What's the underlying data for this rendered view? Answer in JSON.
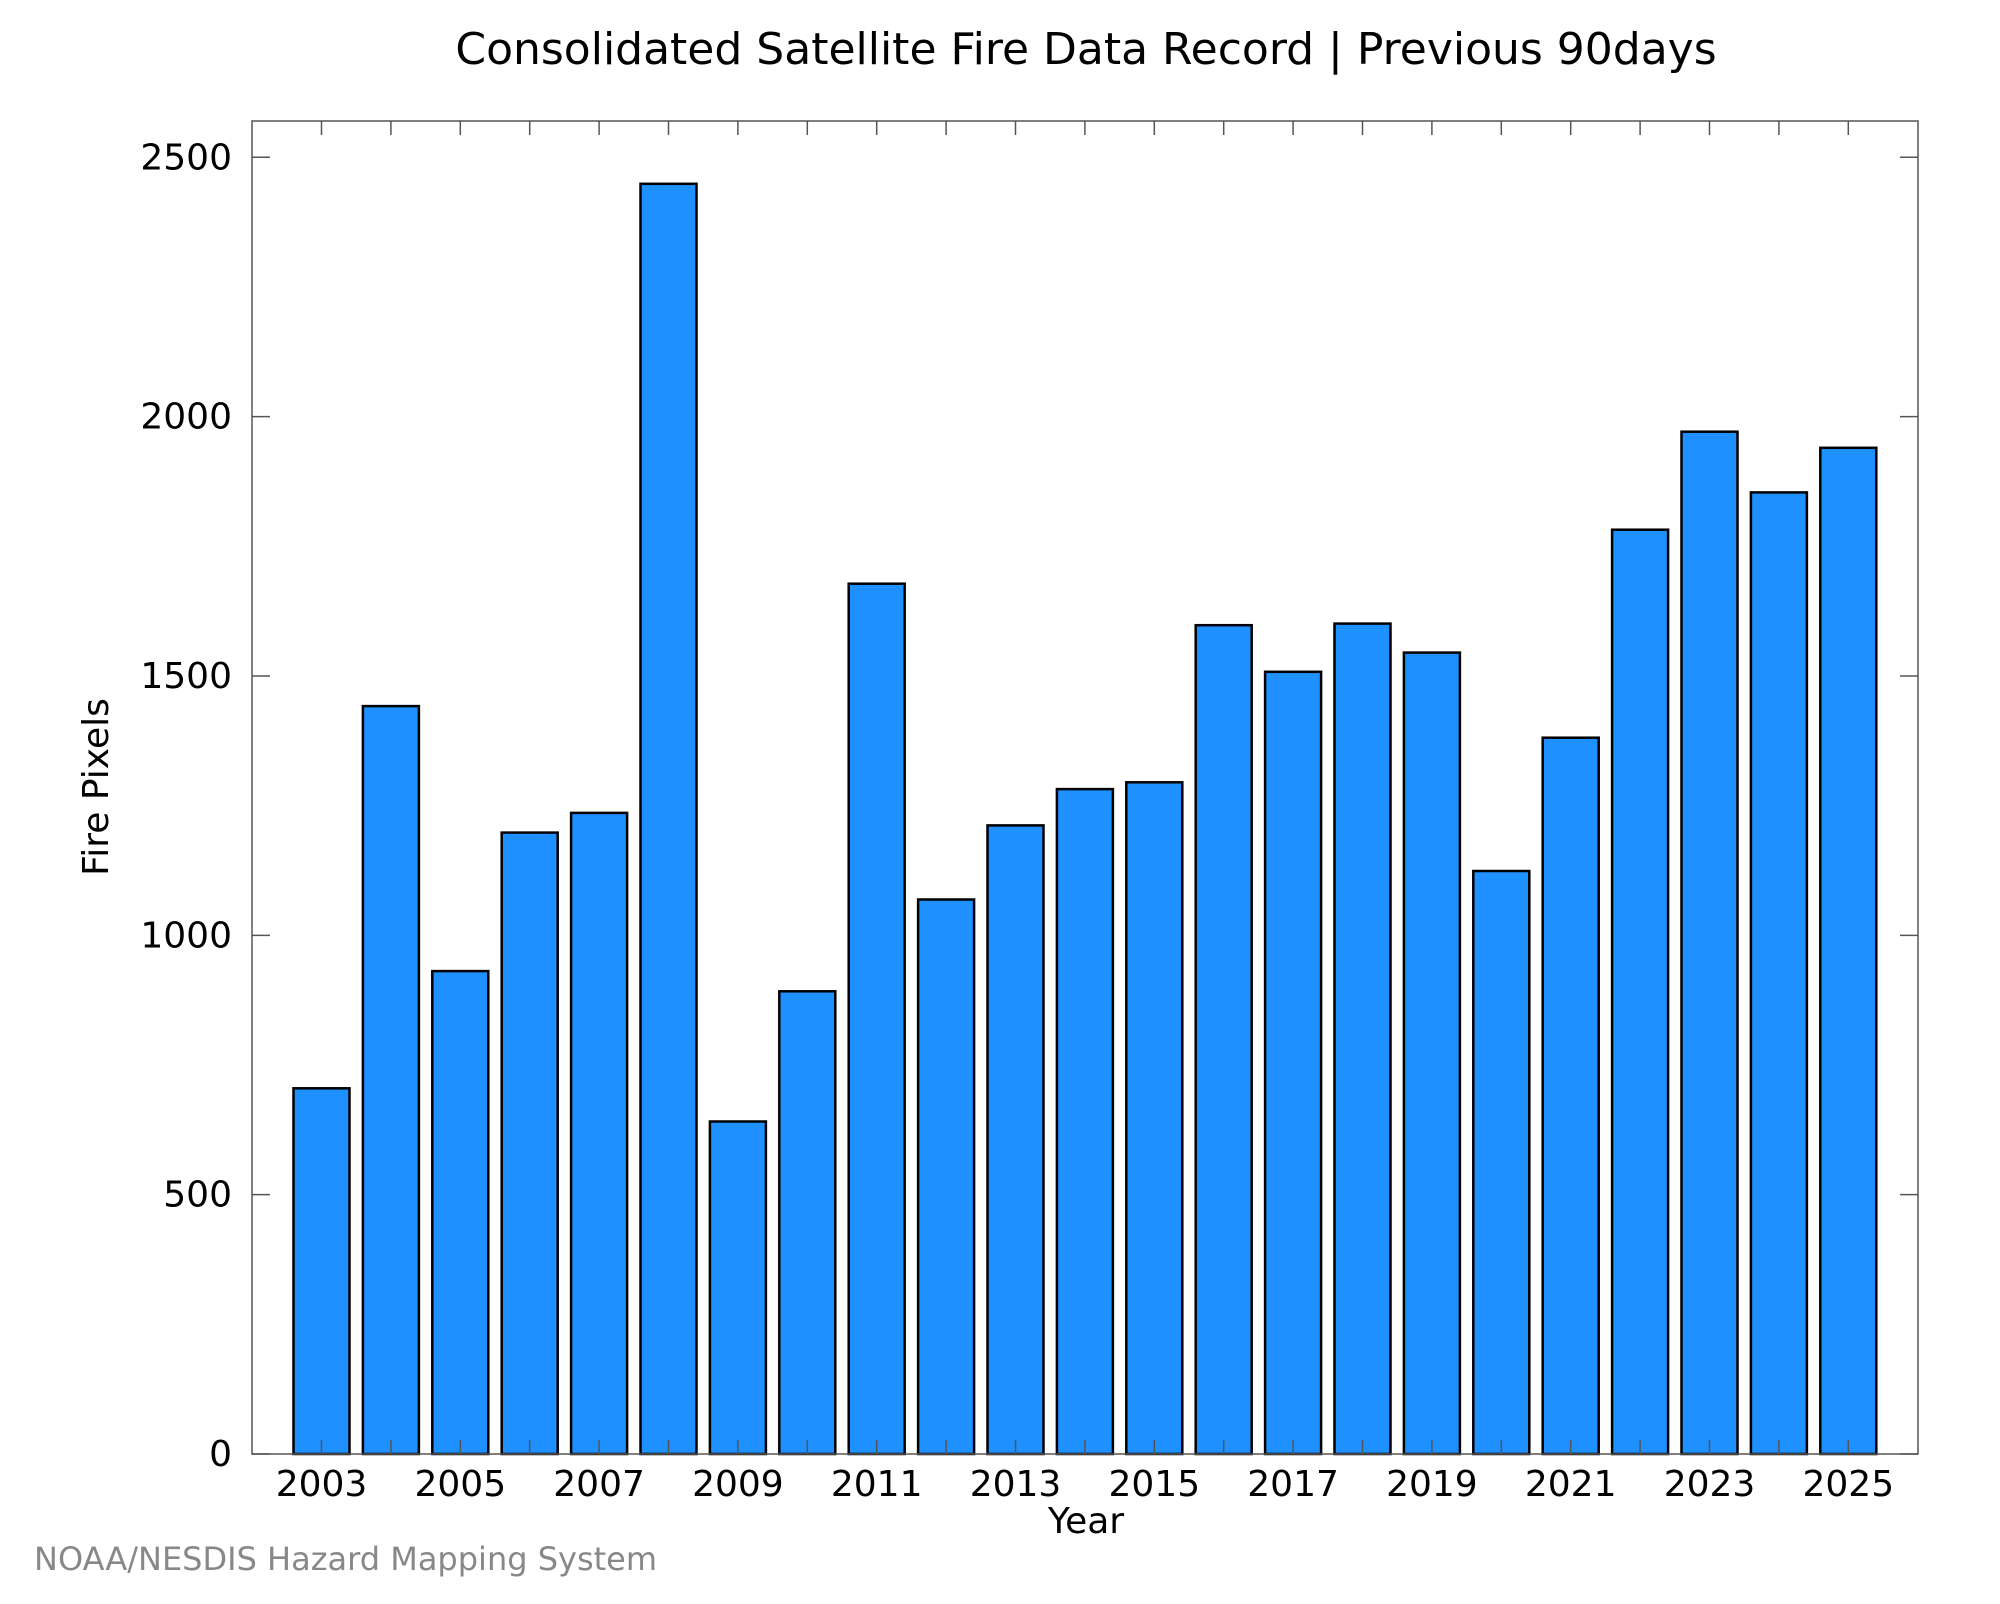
{
  "chart_data": {
    "type": "bar",
    "title": "Consolidated Satellite Fire Data Record | Previous 90days",
    "xlabel": "Year",
    "ylabel": "Fire Pixels",
    "categories": [
      "2003",
      "2004",
      "2005",
      "2006",
      "2007",
      "2008",
      "2009",
      "2010",
      "2011",
      "2012",
      "2013",
      "2014",
      "2015",
      "2016",
      "2017",
      "2018",
      "2019",
      "2020",
      "2021",
      "2022",
      "2023",
      "2024",
      "2025"
    ],
    "values": [
      705,
      1442,
      931,
      1198,
      1236,
      2449,
      641,
      892,
      1678,
      1069,
      1212,
      1282,
      1295,
      1598,
      1508,
      1601,
      1545,
      1124,
      1381,
      1782,
      1971,
      1854,
      1940
    ],
    "x_tick_labels": [
      "2003",
      "2005",
      "2007",
      "2009",
      "2011",
      "2013",
      "2015",
      "2017",
      "2019",
      "2021",
      "2023",
      "2025"
    ],
    "y_ticks": [
      "0",
      "500",
      "1000",
      "1500",
      "2000",
      "2500"
    ],
    "ylim": [
      0,
      2570
    ],
    "grid": false,
    "legend": "none",
    "bar_color": "#1e90ff",
    "bar_edge_color": "#000000"
  },
  "credit": "NOAA/NESDIS Hazard Mapping System"
}
